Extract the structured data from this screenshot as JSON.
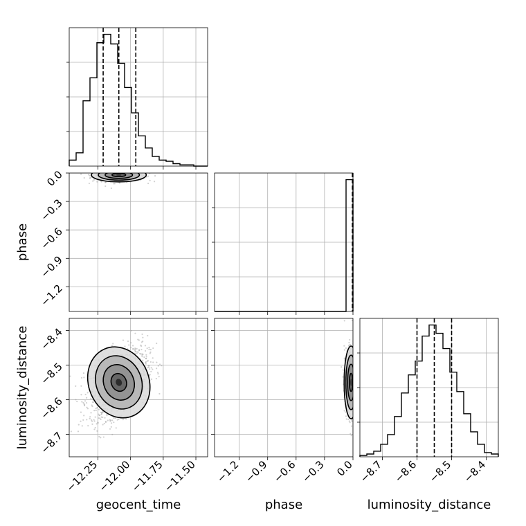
{
  "chart_data": {
    "type": "corner",
    "parameters": [
      "geocent_time",
      "phase",
      "luminosity_distance"
    ],
    "axis_labels": {
      "geocent_time": "geocent_time",
      "phase": "phase",
      "luminosity_distance": "luminosity_distance"
    },
    "ranges": {
      "geocent_time": [
        -12.47,
        -11.41
      ],
      "phase": [
        -1.46,
        0.0
      ],
      "luminosity_distance": [
        -8.765,
        -8.365
      ]
    },
    "ticks": {
      "geocent_time": {
        "values": [
          -12.25,
          -12.0,
          -11.75,
          -11.5
        ],
        "labels": [
          "−12.25",
          "−12.00",
          "−11.75",
          "−11.50"
        ]
      },
      "phase": {
        "values": [
          -1.2,
          -0.9,
          -0.6,
          -0.3,
          0.0
        ],
        "labels": [
          "−1.2",
          "−0.9",
          "−0.6",
          "−0.3",
          "0.0"
        ]
      },
      "luminosity_distance": {
        "values": [
          -8.7,
          -8.6,
          -8.5,
          -8.4
        ],
        "labels": [
          "−8.7",
          "−8.6",
          "−8.5",
          "−8.4"
        ]
      }
    },
    "histograms": {
      "geocent_time": {
        "edges": [
          -12.47,
          -12.417,
          -12.364,
          -12.311,
          -12.258,
          -12.205,
          -12.152,
          -12.099,
          -12.046,
          -11.993,
          -11.94,
          -11.887,
          -11.834,
          -11.781,
          -11.728,
          -11.675,
          -11.622,
          -11.569,
          -11.516,
          -11.463,
          -11.41
        ],
        "counts": [
          5,
          11,
          54,
          73,
          102,
          109,
          101,
          85,
          65,
          44,
          25,
          15,
          8,
          5,
          4,
          2,
          1,
          1,
          0,
          0
        ],
        "quantiles": [
          -12.21,
          -12.09,
          -11.96
        ]
      },
      "phase": {
        "edges": [
          -1.46,
          -1.387,
          -1.314,
          -1.241,
          -1.168,
          -1.095,
          -1.022,
          -0.949,
          -0.876,
          -0.803,
          -0.73,
          -0.657,
          -0.584,
          -0.511,
          -0.438,
          -0.365,
          -0.292,
          -0.219,
          -0.146,
          -0.073,
          0.0
        ],
        "counts": [
          0,
          0,
          0,
          0,
          0,
          0,
          0,
          0,
          0,
          0,
          0,
          0,
          0,
          0,
          0,
          0,
          0,
          0,
          0,
          970
        ],
        "quantiles": [
          -0.006,
          -0.002,
          -0.001
        ]
      },
      "luminosity_distance": {
        "edges": [
          -8.765,
          -8.745,
          -8.725,
          -8.705,
          -8.685,
          -8.665,
          -8.645,
          -8.625,
          -8.605,
          -8.585,
          -8.565,
          -8.545,
          -8.525,
          -8.505,
          -8.485,
          -8.465,
          -8.445,
          -8.425,
          -8.405,
          -8.385,
          -8.365
        ],
        "counts": [
          1,
          2,
          4,
          9,
          16,
          29,
          46,
          59,
          69,
          87,
          95,
          89,
          78,
          61,
          47,
          31,
          18,
          9,
          3,
          2
        ],
        "quantiles": [
          -8.6,
          -8.55,
          -8.5
        ]
      }
    },
    "pairs": [
      {
        "x": "geocent_time",
        "y": "phase",
        "mean": [
          -12.09,
          -0.02
        ],
        "sd": [
          0.1,
          0.035
        ],
        "rho": 0.0
      },
      {
        "x": "geocent_time",
        "y": "luminosity_distance",
        "mean": [
          -12.09,
          -8.55
        ],
        "sd": [
          0.11,
          0.05
        ],
        "rho": 0.45
      },
      {
        "x": "phase",
        "y": "luminosity_distance",
        "mean": [
          -0.02,
          -8.55
        ],
        "sd": [
          0.035,
          0.05
        ],
        "rho": 0.0
      }
    ],
    "grid": true,
    "line_color": "#000000",
    "density_color": "#000000"
  }
}
